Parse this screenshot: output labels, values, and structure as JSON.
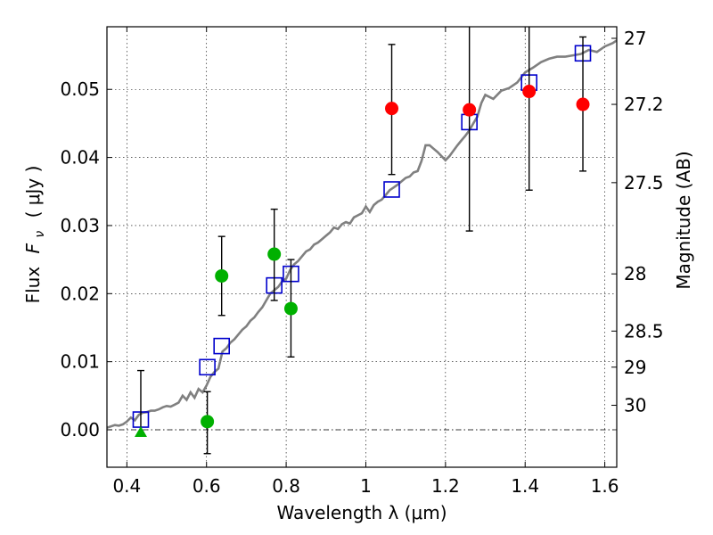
{
  "chart_data": {
    "type": "scatter",
    "xlabel": "Wavelength  λ (μm)",
    "ylabel_text": "Flux",
    "ylabel_math": "F",
    "ylabel_sub": "ν",
    "ylabel_units": "( μJy )",
    "y2label": "Magnitude (AB)",
    "xlim": [
      0.35,
      1.63
    ],
    "ylim": [
      -0.0055,
      0.0592
    ],
    "grid": true,
    "x_ticks": [
      {
        "value": 0.4,
        "label": "0.4"
      },
      {
        "value": 0.6,
        "label": "0.6"
      },
      {
        "value": 0.8,
        "label": "0.8"
      },
      {
        "value": 1.0,
        "label": "1"
      },
      {
        "value": 1.2,
        "label": "1.2"
      },
      {
        "value": 1.4,
        "label": "1.4"
      },
      {
        "value": 1.6,
        "label": "1.6"
      }
    ],
    "y_ticks": [
      {
        "value": 0.0,
        "label": "0.00"
      },
      {
        "value": 0.01,
        "label": "0.01"
      },
      {
        "value": 0.02,
        "label": "0.02"
      },
      {
        "value": 0.03,
        "label": "0.03"
      },
      {
        "value": 0.04,
        "label": "0.04"
      },
      {
        "value": 0.05,
        "label": "0.05"
      }
    ],
    "y2_ticks": [
      {
        "flux": 0.0575,
        "label": "27"
      },
      {
        "flux": 0.0478,
        "label": "27.2"
      },
      {
        "flux": 0.0363,
        "label": "27.5"
      },
      {
        "flux": 0.0229,
        "label": "28"
      },
      {
        "flux": 0.0145,
        "label": "28.5"
      },
      {
        "flux": 0.0092,
        "label": "29"
      },
      {
        "flux": 0.0036,
        "label": "30"
      }
    ],
    "series": [
      {
        "marker": "line",
        "color": "#808080",
        "x": [
          0.35,
          0.37,
          0.38,
          0.39,
          0.4,
          0.41,
          0.42,
          0.43,
          0.44,
          0.45,
          0.46,
          0.47,
          0.48,
          0.49,
          0.5,
          0.51,
          0.52,
          0.53,
          0.54,
          0.55,
          0.56,
          0.57,
          0.58,
          0.59,
          0.6,
          0.61,
          0.62,
          0.63,
          0.64,
          0.65,
          0.66,
          0.67,
          0.68,
          0.69,
          0.7,
          0.71,
          0.72,
          0.73,
          0.74,
          0.75,
          0.76,
          0.77,
          0.78,
          0.79,
          0.8,
          0.81,
          0.82,
          0.83,
          0.84,
          0.85,
          0.86,
          0.87,
          0.88,
          0.89,
          0.9,
          0.91,
          0.92,
          0.93,
          0.94,
          0.95,
          0.96,
          0.97,
          0.98,
          0.99,
          1.0,
          1.01,
          1.02,
          1.03,
          1.04,
          1.05,
          1.06,
          1.07,
          1.08,
          1.09,
          1.1,
          1.11,
          1.12,
          1.13,
          1.14,
          1.15,
          1.16,
          1.17,
          1.18,
          1.19,
          1.2,
          1.21,
          1.22,
          1.23,
          1.24,
          1.25,
          1.26,
          1.27,
          1.28,
          1.29,
          1.3,
          1.32,
          1.34,
          1.36,
          1.38,
          1.4,
          1.42,
          1.44,
          1.46,
          1.48,
          1.5,
          1.52,
          1.54,
          1.56,
          1.58,
          1.6,
          1.62,
          1.63
        ],
        "y": [
          0.0003,
          0.0007,
          0.0006,
          0.0008,
          0.0012,
          0.0018,
          0.0014,
          0.0022,
          0.0025,
          0.0026,
          0.0028,
          0.0028,
          0.003,
          0.0033,
          0.0035,
          0.0034,
          0.0037,
          0.004,
          0.005,
          0.0044,
          0.0055,
          0.0047,
          0.006,
          0.0055,
          0.0065,
          0.0078,
          0.0085,
          0.009,
          0.0115,
          0.012,
          0.0128,
          0.0133,
          0.014,
          0.0147,
          0.0152,
          0.016,
          0.0165,
          0.0173,
          0.018,
          0.019,
          0.02,
          0.0205,
          0.021,
          0.0218,
          0.0222,
          0.0235,
          0.0243,
          0.0248,
          0.0255,
          0.0262,
          0.0265,
          0.0272,
          0.0275,
          0.028,
          0.0285,
          0.029,
          0.0297,
          0.0295,
          0.0302,
          0.0305,
          0.0303,
          0.0312,
          0.0315,
          0.0318,
          0.0328,
          0.032,
          0.033,
          0.0335,
          0.0338,
          0.0345,
          0.0352,
          0.0356,
          0.036,
          0.0365,
          0.037,
          0.0372,
          0.0378,
          0.038,
          0.0395,
          0.0418,
          0.0418,
          0.0413,
          0.0408,
          0.0402,
          0.0396,
          0.0402,
          0.041,
          0.0418,
          0.0425,
          0.0432,
          0.044,
          0.045,
          0.046,
          0.048,
          0.0492,
          0.0486,
          0.0498,
          0.0502,
          0.051,
          0.0525,
          0.0532,
          0.054,
          0.0545,
          0.0548,
          0.0548,
          0.055,
          0.0552,
          0.0558,
          0.0555,
          0.0563,
          0.0568,
          0.0572
        ]
      },
      {
        "marker": "open-square",
        "color": "#0000cc",
        "x": [
          0.435,
          0.602,
          0.638,
          0.77,
          0.812,
          1.065,
          1.26,
          1.41,
          1.545
        ],
        "y": [
          0.0015,
          0.0092,
          0.0123,
          0.0212,
          0.0229,
          0.0353,
          0.0452,
          0.051,
          0.0553
        ]
      },
      {
        "marker": "filled-circle",
        "color": "#ff0000",
        "x": [
          1.065,
          1.26,
          1.41,
          1.545
        ],
        "y": [
          0.0472,
          0.047,
          0.0497,
          0.0478
        ],
        "yerr_low": [
          0.0375,
          0.0292,
          0.0352,
          0.038
        ],
        "yerr_high": [
          0.0566,
          0.06,
          0.06,
          0.0577
        ]
      },
      {
        "marker": "filled-circle",
        "color": "#00b000",
        "x": [
          0.602,
          0.638,
          0.77,
          0.812
        ],
        "y": [
          0.0012,
          0.0226,
          0.0258,
          0.0178
        ],
        "yerr_low": [
          -0.0035,
          0.0168,
          0.019,
          0.0107
        ],
        "yerr_high": [
          0.0056,
          0.0284,
          0.0324,
          0.025
        ]
      },
      {
        "marker": "filled-triangle",
        "color": "#00b000",
        "x": [
          0.435
        ],
        "y": [
          -0.0004
        ],
        "yerr_low": [
          -0.0004
        ],
        "yerr_high": [
          0.0087
        ]
      }
    ]
  }
}
